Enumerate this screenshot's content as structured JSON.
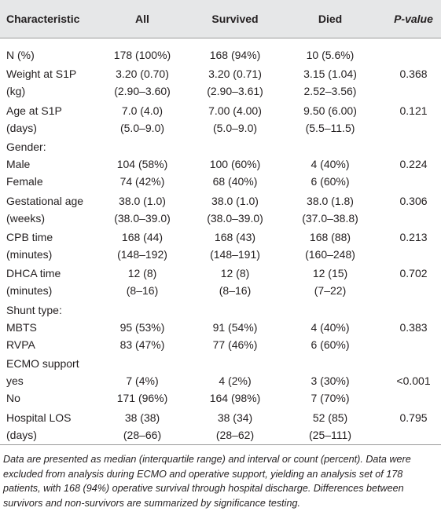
{
  "header": {
    "characteristic": "Characteristic",
    "all": "All",
    "survived": "Survived",
    "died": "Died",
    "p_value": "P-value"
  },
  "groups": [
    [
      {
        "characteristic": "N (%)",
        "all": "178 (100%)",
        "survived": "168 (94%)",
        "died": "10 (5.6%)"
      }
    ],
    [
      {
        "characteristic": "Weight at S1P",
        "all": "3.20 (0.70)",
        "survived": "3.20 (0.71)",
        "died": "3.15 (1.04)",
        "p_value": "0.368"
      },
      {
        "characteristic": "(kg)",
        "all": "(2.90–3.60)",
        "survived": "(2.90–3.61)",
        "died": "2.52–3.56)"
      }
    ],
    [
      {
        "characteristic": "Age at S1P",
        "all": "7.0 (4.0)",
        "survived": "7.00 (4.00)",
        "died": "9.50 (6.00)",
        "p_value": "0.121"
      },
      {
        "characteristic": "(days)",
        "all": "(5.0–9.0)",
        "survived": "(5.0–9.0)",
        "died": "(5.5–11.5)"
      }
    ],
    [
      {
        "characteristic": "Gender:"
      },
      {
        "characteristic": "Male",
        "all": "104 (58%)",
        "survived": "100 (60%)",
        "died": "4 (40%)",
        "p_value": "0.224"
      },
      {
        "characteristic": "Female",
        "all": "74 (42%)",
        "survived": "68 (40%)",
        "died": "6 (60%)"
      }
    ],
    [
      {
        "characteristic": "Gestational age",
        "all": "38.0 (1.0)",
        "survived": "38.0 (1.0)",
        "died": "38.0 (1.8)",
        "p_value": "0.306"
      },
      {
        "characteristic": "(weeks)",
        "all": "(38.0–39.0)",
        "survived": "(38.0–39.0)",
        "died": "(37.0–38.8)"
      }
    ],
    [
      {
        "characteristic": "CPB time",
        "all": "168 (44)",
        "survived": "168 (43)",
        "died": "168 (88)",
        "p_value": "0.213"
      },
      {
        "characteristic": "(minutes)",
        "all": "(148–192)",
        "survived": "(148–191)",
        "died": "(160–248)"
      }
    ],
    [
      {
        "characteristic": "DHCA time",
        "all": "12 (8)",
        "survived": "12 (8)",
        "died": "12 (15)",
        "p_value": "0.702"
      },
      {
        "characteristic": "(minutes)",
        "all": "(8–16)",
        "survived": "(8–16)",
        "died": "(7–22)"
      }
    ],
    [
      {
        "characteristic": "Shunt type:"
      },
      {
        "characteristic": "MBTS",
        "all": "95 (53%)",
        "survived": "91 (54%)",
        "died": "4 (40%)",
        "p_value": "0.383"
      },
      {
        "characteristic": "RVPA",
        "all": "83 (47%)",
        "survived": "77 (46%)",
        "died": "6 (60%)"
      }
    ],
    [
      {
        "characteristic": "ECMO support"
      },
      {
        "characteristic": "yes",
        "all": "7 (4%)",
        "survived": "4 (2%)",
        "died": "3 (30%)",
        "p_value": "<0.001"
      },
      {
        "characteristic": "No",
        "all": "171 (96%)",
        "survived": "164 (98%)",
        "died": "7 (70%)"
      }
    ],
    [
      {
        "characteristic": "Hospital LOS",
        "all": "38 (38)",
        "survived": "38 (34)",
        "died": "52 (85)",
        "p_value": "0.795"
      },
      {
        "characteristic": "(days)",
        "all": "(28–66)",
        "survived": "(28–62)",
        "died": "(25–111)"
      }
    ]
  ],
  "footnote": "Data are presented as median (interquartile range) and interval or count (percent). Data were excluded from analysis during ECMO and operative support, yielding an analysis set of 178 patients, with 168 (94%) operative survival through hospital discharge. Differences between survivors and non-survivors are summarized by significance testing."
}
